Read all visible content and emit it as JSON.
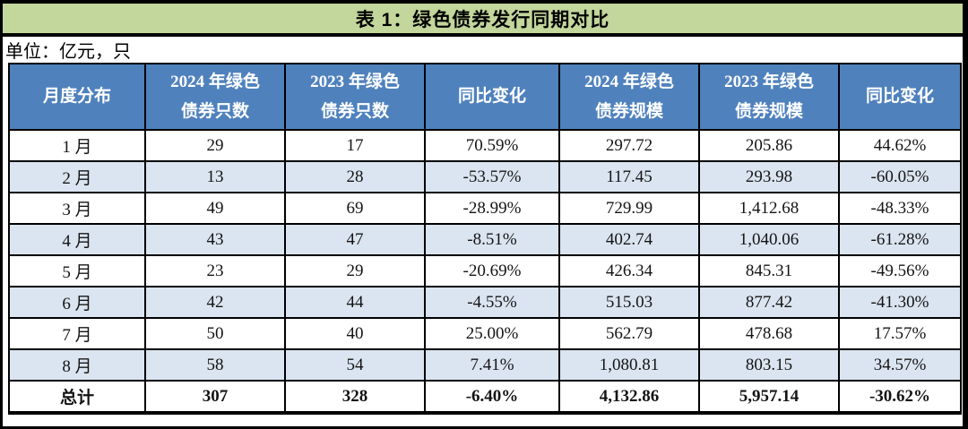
{
  "title": "表 1：绿色债券发行同期对比",
  "unit_note": "单位：亿元，只",
  "colors": {
    "title_bg": "#C3D69B",
    "header_bg": "#4F81BD",
    "header_text": "#FFFFFF",
    "row_alt_bg": "#DBE5F1",
    "row_bg": "#FFFFFF",
    "border": "#000000",
    "body_text": "#141414"
  },
  "chart_data": {
    "type": "table",
    "columns": [
      {
        "line1": "月度分布",
        "line2": ""
      },
      {
        "line1": "2024 年绿色",
        "line2": "债券只数"
      },
      {
        "line1": "2023 年绿色",
        "line2": "债券只数"
      },
      {
        "line1": "同比变化",
        "line2": ""
      },
      {
        "line1": "2024 年绿色",
        "line2": "债券规模"
      },
      {
        "line1": "2023 年绿色",
        "line2": "债券规模"
      },
      {
        "line1": "同比变化",
        "line2": ""
      }
    ],
    "rows": [
      [
        "1 月",
        "29",
        "17",
        "70.59%",
        "297.72",
        "205.86",
        "44.62%"
      ],
      [
        "2 月",
        "13",
        "28",
        "-53.57%",
        "117.45",
        "293.98",
        "-60.05%"
      ],
      [
        "3 月",
        "49",
        "69",
        "-28.99%",
        "729.99",
        "1,412.68",
        "-48.33%"
      ],
      [
        "4 月",
        "43",
        "47",
        "-8.51%",
        "402.74",
        "1,040.06",
        "-61.28%"
      ],
      [
        "5 月",
        "23",
        "29",
        "-20.69%",
        "426.34",
        "845.31",
        "-49.56%"
      ],
      [
        "6 月",
        "42",
        "44",
        "-4.55%",
        "515.03",
        "877.42",
        "-41.30%"
      ],
      [
        "7 月",
        "50",
        "40",
        "25.00%",
        "562.79",
        "478.68",
        "17.57%"
      ],
      [
        "8 月",
        "58",
        "54",
        "7.41%",
        "1,080.81",
        "803.15",
        "34.57%"
      ]
    ],
    "total_row": [
      "总计",
      "307",
      "328",
      "-6.40%",
      "4,132.86",
      "5,957.14",
      "-30.62%"
    ]
  }
}
